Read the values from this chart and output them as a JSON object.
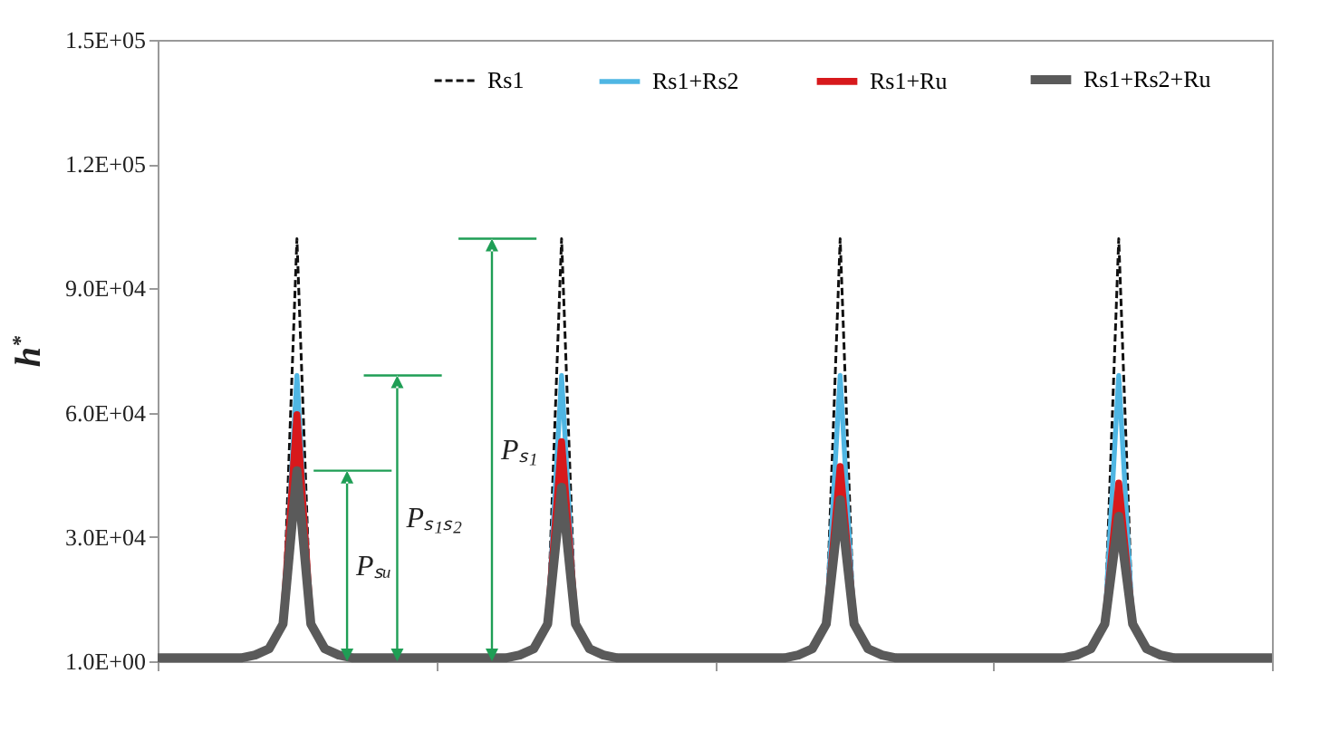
{
  "chart_data": {
    "type": "line",
    "ylabel": "h$^{*}$",
    "categories": [
      null,
      null,
      null,
      null,
      null,
      null,
      null,
      null,
      null,
      null,
      null,
      null,
      null,
      null,
      null,
      null,
      null,
      null,
      null,
      null,
      null,
      null,
      null,
      null,
      null,
      null,
      null,
      null,
      null,
      null,
      null,
      null,
      null,
      null,
      null,
      null,
      null,
      null,
      null,
      null,
      null,
      null,
      null,
      null,
      null,
      null,
      null,
      null,
      null,
      null,
      null,
      null,
      null,
      null,
      null,
      null,
      null,
      null,
      null,
      null,
      null,
      null,
      null,
      null,
      null,
      null,
      null,
      null,
      null,
      null,
      null,
      null,
      null,
      null,
      null,
      null,
      null,
      null,
      null,
      null,
      null
    ],
    "series": [
      {
        "name": "Rs1",
        "color": "#111111",
        "line_style": "dashed",
        "values": [
          null,
          null,
          null,
          null,
          null,
          null,
          null,
          null,
          null,
          9000,
          102000,
          9000,
          null,
          null,
          null,
          null,
          null,
          null,
          null,
          null,
          null,
          null,
          null,
          null,
          null,
          null,
          null,
          null,
          9000,
          102000,
          9000,
          null,
          null,
          null,
          null,
          null,
          null,
          null,
          null,
          null,
          null,
          null,
          null,
          null,
          null,
          null,
          null,
          null,
          9000,
          102000,
          9000,
          null,
          null,
          null,
          null,
          null,
          null,
          null,
          null,
          null,
          null,
          null,
          null,
          null,
          null,
          null,
          null,
          null,
          9000,
          102000,
          9000,
          null,
          null,
          null,
          null,
          null,
          null,
          null,
          null,
          null,
          null
        ]
      },
      {
        "name": "Rs1+Rs2",
        "color": "#4fb6e3",
        "values": [
          null,
          null,
          null,
          null,
          null,
          null,
          null,
          null,
          null,
          9000,
          69000,
          9000,
          null,
          null,
          null,
          null,
          null,
          null,
          null,
          null,
          null,
          null,
          null,
          null,
          null,
          null,
          null,
          null,
          9000,
          69000,
          9000,
          null,
          null,
          null,
          null,
          null,
          null,
          null,
          null,
          null,
          null,
          null,
          null,
          null,
          null,
          null,
          null,
          null,
          9000,
          69000,
          9000,
          null,
          null,
          null,
          null,
          null,
          null,
          null,
          null,
          null,
          null,
          null,
          null,
          null,
          null,
          null,
          null,
          null,
          9000,
          69000,
          9000,
          null,
          null,
          null,
          null,
          null,
          null,
          null,
          null,
          null,
          null
        ]
      },
      {
        "name": "Rs1+Ru",
        "color": "#d7191c",
        "values": [
          null,
          null,
          null,
          null,
          null,
          null,
          null,
          null,
          null,
          9000,
          59500,
          9000,
          null,
          null,
          null,
          null,
          null,
          null,
          null,
          null,
          null,
          null,
          null,
          null,
          null,
          null,
          null,
          null,
          9000,
          53000,
          9000,
          null,
          null,
          null,
          null,
          null,
          null,
          null,
          null,
          null,
          null,
          null,
          null,
          null,
          null,
          null,
          null,
          null,
          9000,
          47000,
          9000,
          null,
          null,
          null,
          null,
          null,
          null,
          null,
          null,
          null,
          null,
          null,
          null,
          null,
          null,
          null,
          null,
          null,
          9000,
          43000,
          9000,
          null,
          null,
          null,
          null,
          null,
          null,
          null,
          null,
          null,
          null
        ]
      },
      {
        "name": "Rs1+Rs2+Ru",
        "color": "#5a5a5a",
        "values": [
          800,
          800,
          800,
          800,
          800,
          800,
          800,
          1500,
          3000,
          9000,
          46000,
          9000,
          3000,
          1500,
          800,
          800,
          800,
          800,
          800,
          800,
          800,
          800,
          800,
          800,
          800,
          800,
          1500,
          3000,
          9000,
          42000,
          9000,
          3000,
          1500,
          800,
          800,
          800,
          800,
          800,
          800,
          800,
          800,
          800,
          800,
          800,
          800,
          800,
          1500,
          3000,
          9000,
          39000,
          9000,
          3000,
          1500,
          800,
          800,
          800,
          800,
          800,
          800,
          800,
          800,
          800,
          800,
          800,
          800,
          800,
          1500,
          3000,
          9000,
          35000,
          9000,
          3000,
          1500,
          800,
          800,
          800,
          800,
          800,
          800,
          800,
          800
        ]
      }
    ],
    "annotations": [
      "Pₛ₁",
      "Pₛ₁ₛ₂",
      "Pₛᵤ"
    ],
    "ylim": [
      1,
      150000
    ],
    "yticks": [
      {
        "value": 1,
        "label": "1.0E+00"
      },
      {
        "value": 30000,
        "label": "3.0E+04"
      },
      {
        "value": 60000,
        "label": "6.0E+04"
      },
      {
        "value": 90000,
        "label": "9.0E+04"
      },
      {
        "value": 120000,
        "label": "1.2E+05"
      },
      {
        "value": 150000,
        "label": "1.5E+05"
      }
    ],
    "legend": "top",
    "grid": false
  }
}
